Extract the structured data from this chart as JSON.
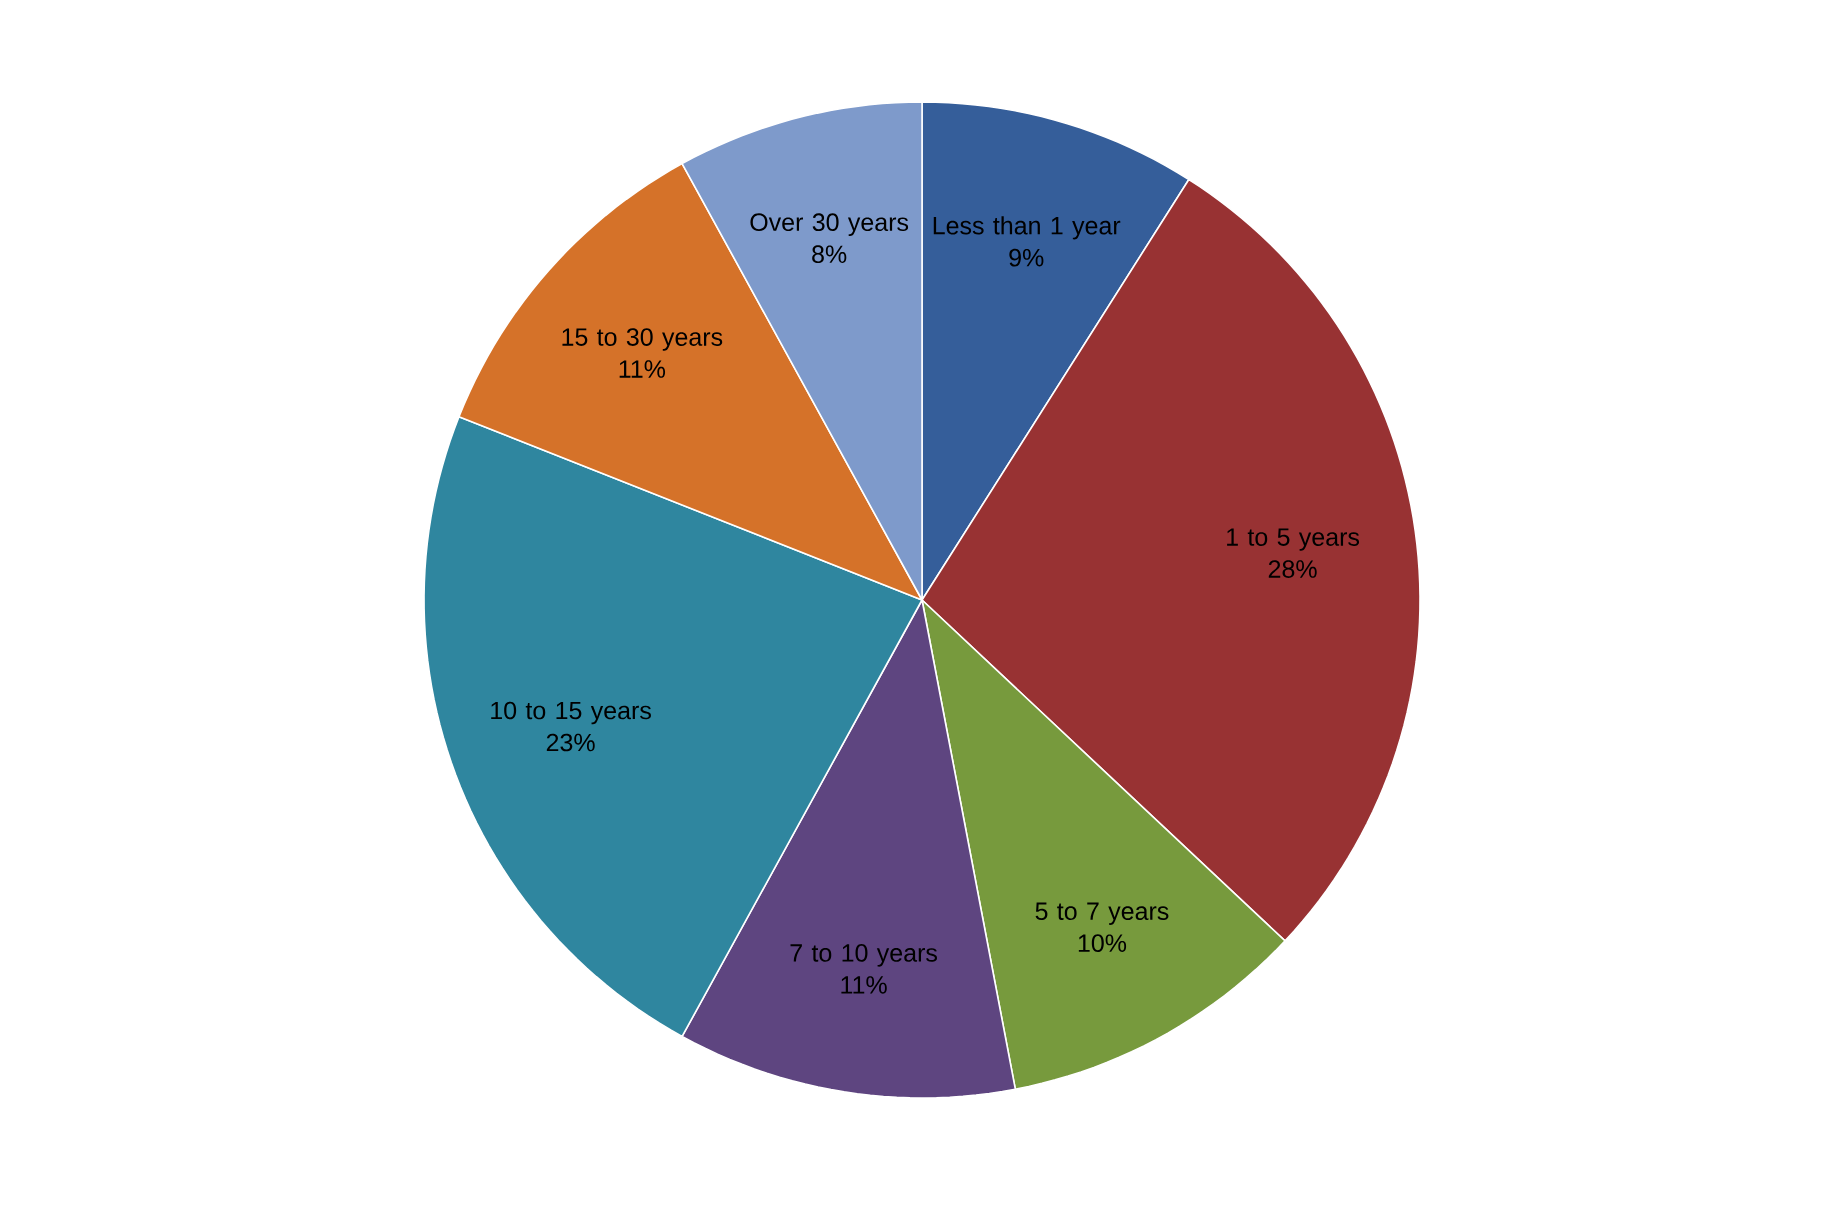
{
  "chart_data": {
    "type": "pie",
    "categories": [
      "Less than 1 year",
      "1 to 5 years",
      "5 to 7 years",
      "7 to 10 years",
      "10 to 15 years",
      "15 to 30 years",
      "Over 30 years"
    ],
    "values": [
      9,
      28,
      10,
      11,
      23,
      11,
      8
    ],
    "colors": [
      "#355e9a",
      "#983233",
      "#779a3d",
      "#5e4580",
      "#2f869f",
      "#d57229",
      "#7e9acb"
    ],
    "value_labels": [
      "9%",
      "28%",
      "10%",
      "11%",
      "23%",
      "11%",
      "8%"
    ]
  }
}
